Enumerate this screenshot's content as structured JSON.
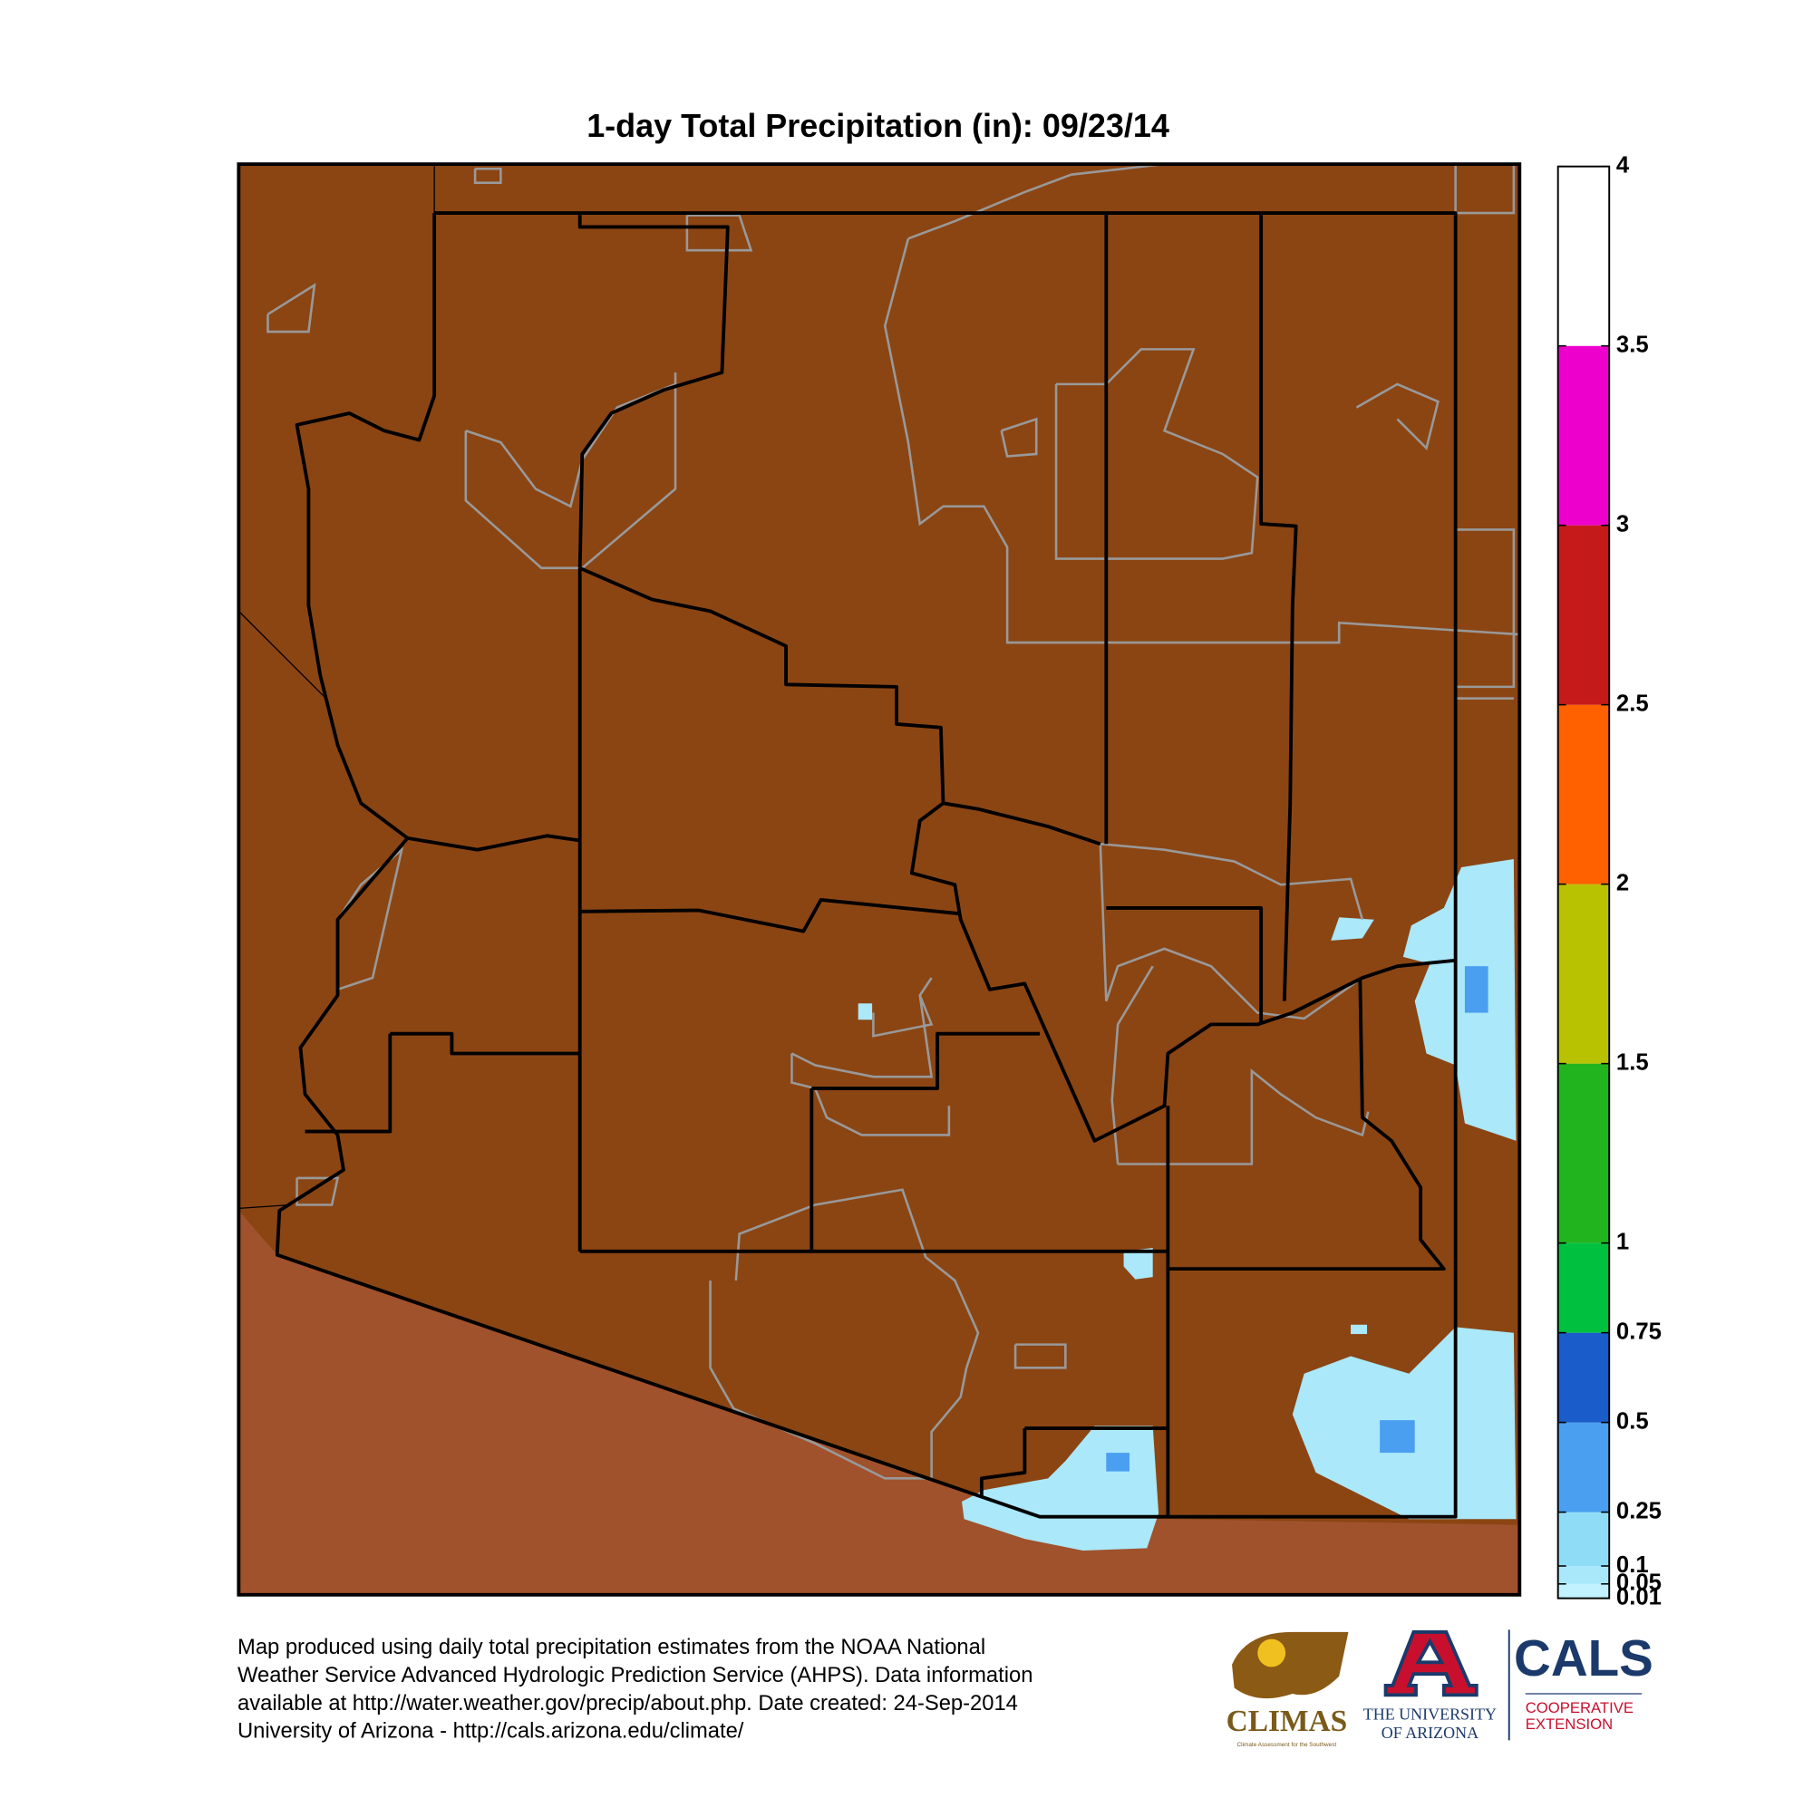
{
  "map": {
    "title": "1-day Total Precipitation (in): 09/23/14",
    "colorbar": {
      "ylim": [
        0.01,
        4
      ],
      "ticks": [
        0.01,
        0.05,
        0.1,
        0.25,
        0.5,
        0.75,
        1,
        1.5,
        2,
        2.5,
        3,
        3.5,
        4
      ],
      "colors": [
        "#c2f1ff",
        "#a9e8fb",
        "#8fdcf7",
        "#4a9ff0",
        "#1a5cc9",
        "#00c040",
        "#22b41e",
        "#b8c200",
        "#ff6000",
        "#c41a1a",
        "#ee00cc",
        "#ffffff"
      ]
    }
  },
  "footer": {
    "lines": [
      "Map produced using daily total precipitation estimates from the NOAA National",
      "Weather Service Advanced Hydrologic Prediction Service (AHPS). Data information",
      "available at http://water.weather.gov/precip/about.php. Date created: 24-Sep-2014",
      "University of Arizona - http://cals.arizona.edu/climate/"
    ]
  },
  "logos": {
    "climas": "CLIMAS",
    "climas_tagline": "Climate Assessment for the Southwest",
    "university": [
      "THE UNIVERSITY",
      "OF ARIZONA"
    ],
    "cals": "CALS",
    "extension": [
      "COOPERATIVE",
      "EXTENSION"
    ]
  }
}
